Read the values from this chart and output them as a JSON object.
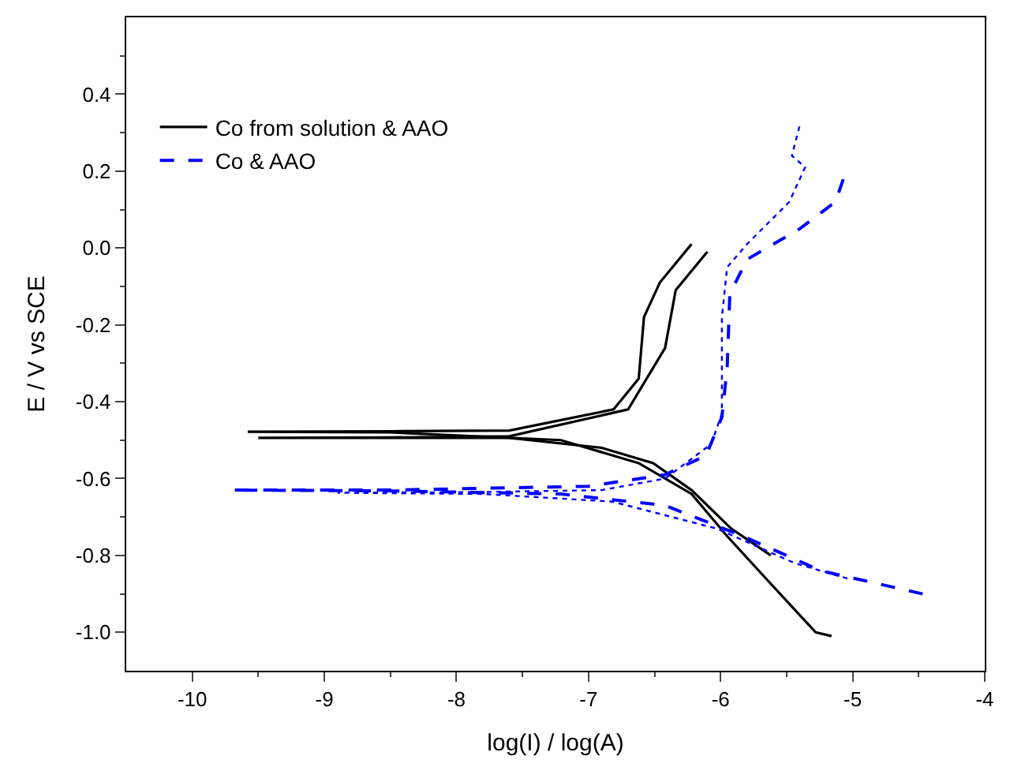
{
  "chart_data": {
    "type": "line",
    "xlabel": "log(I) / log(A)",
    "ylabel": "E / V vs SCE",
    "xlim": [
      -10.5,
      -4
    ],
    "ylim": [
      -1.1,
      0.6
    ],
    "xticks": [
      -10,
      {
        "value": -9.5,
        "label": null
      },
      -9,
      {
        "value": -8.5,
        "label": null
      },
      -8,
      {
        "value": -7.5,
        "label": null
      },
      -7,
      {
        "value": -6.5,
        "label": null
      },
      -6,
      {
        "value": -5.5,
        "label": null
      },
      -5,
      {
        "value": -4.5,
        "label": null
      },
      -4
    ],
    "yticks": [
      {
        "value": -1.0,
        "label": "-1.0"
      },
      {
        "value": -0.9,
        "label": null
      },
      -0.8,
      {
        "value": -0.7,
        "label": null
      },
      -0.6,
      {
        "value": -0.5,
        "label": null
      },
      -0.4,
      {
        "value": -0.3,
        "label": null
      },
      -0.2,
      {
        "value": -0.1,
        "label": null
      },
      {
        "value": 0,
        "label": "0.0"
      },
      {
        "value": 0.1,
        "label": null
      },
      0.2,
      {
        "value": 0.3,
        "label": null
      },
      0.4,
      {
        "value": 0.5,
        "label": null
      }
    ],
    "legend": "top left",
    "series": [
      {
        "name": "Co from solution & AAO",
        "color": "#000000",
        "line_style": "solid",
        "x": [
          -5.16,
          -5.28,
          -5.63,
          -5.95,
          -6.22,
          -6.62,
          -7.21,
          -8.5,
          -9.58,
          -8.5,
          -7.6,
          -6.81,
          -6.62,
          -6.58,
          -6.46,
          -6.22
        ],
        "values": [
          -1.01,
          -1.0,
          -0.87,
          -0.75,
          -0.64,
          -0.56,
          -0.5,
          -0.48,
          -0.478,
          -0.477,
          -0.475,
          -0.42,
          -0.34,
          -0.18,
          -0.09,
          0.01
        ]
      },
      {
        "color": "#000000",
        "line_style": "solid",
        "x": [
          -5.62,
          -5.92,
          -6.22,
          -6.51,
          -6.9,
          -7.6,
          -8.5,
          -9.5,
          -8.5,
          -7.6,
          -6.7,
          -6.42,
          -6.34,
          -6.1
        ],
        "values": [
          -0.8,
          -0.73,
          -0.63,
          -0.56,
          -0.52,
          -0.494,
          -0.494,
          -0.494,
          -0.493,
          -0.49,
          -0.42,
          -0.26,
          -0.11,
          -0.01
        ]
      },
      {
        "name": "Co & AAO",
        "color": "#0000ff",
        "line_style": "dashed",
        "x": [
          -4.47,
          -5.24,
          -5.83,
          -6.42,
          -7.21,
          -8.5,
          -9.7,
          -8.5,
          -7.0,
          -6.42,
          -6.11,
          -5.99,
          -5.95,
          -5.93,
          -5.8,
          -5.4,
          -5.13,
          -5.07
        ],
        "values": [
          -0.9,
          -0.84,
          -0.75,
          -0.67,
          -0.64,
          -0.632,
          -0.63,
          -0.63,
          -0.62,
          -0.59,
          -0.54,
          -0.44,
          -0.31,
          -0.12,
          -0.03,
          0.05,
          0.12,
          0.18
        ]
      },
      {
        "color": "#0000ff",
        "line_style": "dotted",
        "x": [
          -5.04,
          -5.44,
          -6.03,
          -6.82,
          -7.8,
          -8.9,
          -7.8,
          -6.9,
          -6.42,
          -6.07,
          -5.99,
          -5.99,
          -5.95,
          -5.8,
          -5.48,
          -5.36,
          -5.46,
          -5.4
        ],
        "values": [
          -0.86,
          -0.82,
          -0.73,
          -0.66,
          -0.64,
          -0.637,
          -0.635,
          -0.63,
          -0.6,
          -0.51,
          -0.43,
          -0.18,
          -0.05,
          0.01,
          0.12,
          0.21,
          0.24,
          0.32
        ]
      }
    ]
  }
}
